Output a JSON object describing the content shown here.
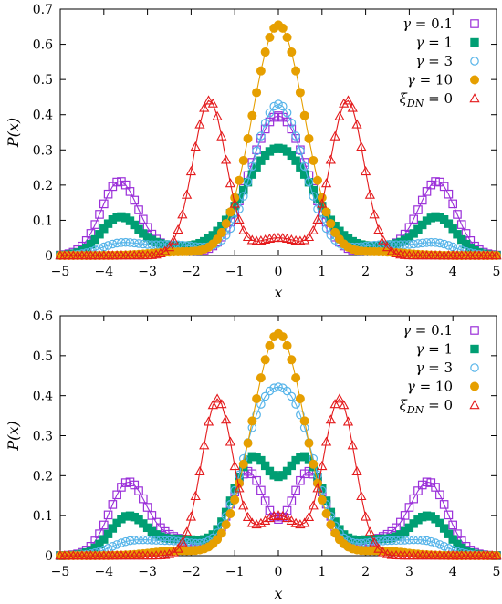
{
  "chart_data": [
    {
      "type": "line",
      "xlabel": "x",
      "ylabel": "P(x)",
      "xlim": [
        -5,
        5
      ],
      "ylim": [
        0,
        0.7
      ],
      "xticks": [
        -5,
        -4,
        -3,
        -2,
        -1,
        0,
        1,
        2,
        3,
        4,
        5
      ],
      "yticks": [
        0,
        0.1,
        0.2,
        0.3,
        0.4,
        0.5,
        0.6,
        0.7
      ],
      "legend_position": "top-right",
      "series": [
        {
          "name": "γ = 0.1",
          "color": "#9b30d9",
          "marker": "square-open",
          "peaks": [
            {
              "x": -3.65,
              "h": 0.205,
              "w": 0.42
            },
            {
              "x": 3.65,
              "h": 0.205,
              "w": 0.42
            },
            {
              "x": -0.32,
              "h": 0.235,
              "w": 0.55
            },
            {
              "x": 0.32,
              "h": 0.235,
              "w": 0.55
            },
            {
              "x": -2.7,
              "h": 0.02,
              "w": 0.6
            },
            {
              "x": 2.7,
              "h": 0.02,
              "w": 0.6
            }
          ]
        },
        {
          "name": "γ = 1",
          "color": "#009e73",
          "marker": "square-filled",
          "peaks": [
            {
              "x": -3.65,
              "h": 0.105,
              "w": 0.42
            },
            {
              "x": 3.65,
              "h": 0.105,
              "w": 0.42
            },
            {
              "x": 0,
              "h": 0.305,
              "w": 0.8
            },
            {
              "x": -2.6,
              "h": 0.025,
              "w": 0.6
            },
            {
              "x": 2.6,
              "h": 0.025,
              "w": 0.6
            }
          ]
        },
        {
          "name": "γ = 3",
          "color": "#56b4e9",
          "marker": "circle-open",
          "peaks": [
            {
              "x": -3.65,
              "h": 0.03,
              "w": 0.45
            },
            {
              "x": 3.65,
              "h": 0.03,
              "w": 0.45
            },
            {
              "x": 0,
              "h": 0.43,
              "w": 0.58
            },
            {
              "x": -2.4,
              "h": 0.03,
              "w": 0.7
            },
            {
              "x": 2.4,
              "h": 0.03,
              "w": 0.7
            }
          ]
        },
        {
          "name": "γ = 10",
          "color": "#e69f00",
          "marker": "circle-filled",
          "peaks": [
            {
              "x": 0,
              "h": 0.655,
              "w": 0.6
            },
            {
              "x": -2.3,
              "h": 0.01,
              "w": 0.6
            },
            {
              "x": 2.3,
              "h": 0.01,
              "w": 0.6
            }
          ]
        },
        {
          "name": "ξ_DN = 0",
          "color": "#e41a1c",
          "marker": "triangle-open",
          "peaks": [
            {
              "x": -1.58,
              "h": 0.44,
              "w": 0.38
            },
            {
              "x": 1.58,
              "h": 0.44,
              "w": 0.38
            },
            {
              "x": 0,
              "h": 0.05,
              "w": 0.55
            }
          ]
        }
      ]
    },
    {
      "type": "line",
      "xlabel": "x",
      "ylabel": "P(x)",
      "xlim": [
        -5,
        5
      ],
      "ylim": [
        0,
        0.6
      ],
      "xticks": [
        -5,
        -4,
        -3,
        -2,
        -1,
        0,
        1,
        2,
        3,
        4,
        5
      ],
      "yticks": [
        0,
        0.1,
        0.2,
        0.3,
        0.4,
        0.5,
        0.6
      ],
      "legend_position": "top-right",
      "series": [
        {
          "name": "γ = 0.1",
          "color": "#9b30d9",
          "marker": "square-open",
          "peaks": [
            {
              "x": -3.45,
              "h": 0.18,
              "w": 0.42
            },
            {
              "x": 3.45,
              "h": 0.18,
              "w": 0.42
            },
            {
              "x": -0.7,
              "h": 0.21,
              "w": 0.4
            },
            {
              "x": 0.7,
              "h": 0.21,
              "w": 0.4
            },
            {
              "x": -2.4,
              "h": 0.04,
              "w": 0.5
            },
            {
              "x": 2.4,
              "h": 0.04,
              "w": 0.5
            }
          ]
        },
        {
          "name": "γ = 1",
          "color": "#009e73",
          "marker": "square-filled",
          "peaks": [
            {
              "x": -3.45,
              "h": 0.095,
              "w": 0.42
            },
            {
              "x": 3.45,
              "h": 0.095,
              "w": 0.42
            },
            {
              "x": -0.6,
              "h": 0.24,
              "w": 0.45
            },
            {
              "x": 0.6,
              "h": 0.24,
              "w": 0.45
            },
            {
              "x": -2.2,
              "h": 0.04,
              "w": 0.6
            },
            {
              "x": 2.2,
              "h": 0.04,
              "w": 0.6
            }
          ]
        },
        {
          "name": "γ = 3",
          "color": "#56b4e9",
          "marker": "circle-open",
          "peaks": [
            {
              "x": -3.45,
              "h": 0.025,
              "w": 0.45
            },
            {
              "x": 3.45,
              "h": 0.025,
              "w": 0.45
            },
            {
              "x": -0.42,
              "h": 0.3,
              "w": 0.5
            },
            {
              "x": 0.42,
              "h": 0.3,
              "w": 0.5
            },
            {
              "x": -2.4,
              "h": 0.035,
              "w": 0.7
            },
            {
              "x": 2.4,
              "h": 0.035,
              "w": 0.7
            }
          ]
        },
        {
          "name": "γ = 10",
          "color": "#e69f00",
          "marker": "circle-filled",
          "peaks": [
            {
              "x": 0,
              "h": 0.555,
              "w": 0.6
            },
            {
              "x": -2.3,
              "h": 0.012,
              "w": 0.6
            },
            {
              "x": 2.3,
              "h": 0.012,
              "w": 0.6
            }
          ]
        },
        {
          "name": "ξ_DN = 0",
          "color": "#e41a1c",
          "marker": "triangle-open",
          "peaks": [
            {
              "x": -1.4,
              "h": 0.39,
              "w": 0.36
            },
            {
              "x": 1.4,
              "h": 0.39,
              "w": 0.36
            },
            {
              "x": 0,
              "h": 0.1,
              "w": 0.5
            }
          ]
        }
      ]
    }
  ]
}
